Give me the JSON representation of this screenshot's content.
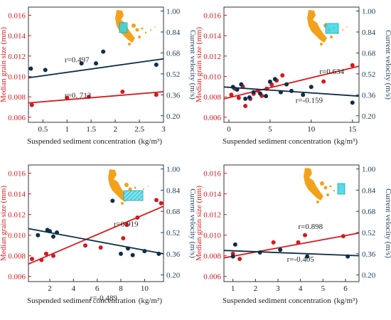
{
  "colors": {
    "red_series": "#d6191c",
    "navy_series": "#0d2f4a",
    "left_axis": "#d6191c",
    "right_axis": "#1a3e5c",
    "map_land": "#f2a21a",
    "map_box": "#35d6e6"
  },
  "chart_data": [
    {
      "type": "scatter",
      "xlabel": "Suspended sediment concentration",
      "xunit": "(kg/m³)",
      "ylabel_left": "Median grain size (mm)",
      "ylabel_right": "Current velocity (m/s)",
      "xlim": [
        0.2,
        3.0
      ],
      "ylim_left": [
        0.0055,
        0.0168
      ],
      "ylim_right": [
        0.15,
        1.03
      ],
      "xticks": [
        0.5,
        1,
        1.5,
        2,
        2.5,
        3
      ],
      "xtick_labels": [
        "0.5",
        "1",
        "1.5",
        "2",
        "2.5",
        "3"
      ],
      "yticks_left": [
        "0.006",
        "0.008",
        "0.010",
        "0.012",
        "0.014",
        "0.016"
      ],
      "yticks_right": [
        "0.20",
        "0.36",
        "0.52",
        "0.68",
        "0.84",
        "1.00"
      ],
      "grid": false,
      "inset_map_icon": "map-inset-icon",
      "series": [
        {
          "axis": "left",
          "color": "#d6191c",
          "correlation": "r=0. 712",
          "x": [
            0.27,
            1.0,
            1.45,
            2.15,
            2.85
          ],
          "y": [
            0.0072,
            0.0079,
            0.008,
            0.0085,
            0.0082
          ],
          "trend": [
            [
              0.2,
              0.0074
            ],
            [
              3.0,
              0.0085
            ]
          ]
        },
        {
          "axis": "right",
          "color": "#0d2f4a",
          "correlation": "r=0.497",
          "x": [
            0.25,
            0.55,
            1.3,
            1.6,
            1.75,
            2.85
          ],
          "y": [
            0.56,
            0.55,
            0.6,
            0.6,
            0.69,
            0.59
          ],
          "trend": [
            [
              0.2,
              0.49
            ],
            [
              3.0,
              0.635
            ]
          ]
        }
      ],
      "label_positions": [
        {
          "series": 1,
          "x": 0.95,
          "y": 0.61
        },
        {
          "series": 0,
          "x": 0.95,
          "y": 0.00792
        }
      ]
    },
    {
      "type": "scatter",
      "xlabel": "Suspended sediment concentration",
      "xunit": "(kg/m³)",
      "ylabel_left": "Median grain size (mm)",
      "ylabel_right": "Current velocity (m/s)",
      "xlim": [
        -0.6,
        15.8
      ],
      "ylim_left": [
        0.0055,
        0.0168
      ],
      "ylim_right": [
        0.15,
        1.03
      ],
      "xticks": [
        0,
        5,
        10,
        15
      ],
      "xtick_labels": [
        "0",
        "5",
        "10",
        "15"
      ],
      "yticks_left": [
        "0.006",
        "0.008",
        "0.010",
        "0.012",
        "0.014",
        "0.016"
      ],
      "yticks_right": [
        "0.20",
        "0.36",
        "0.52",
        "0.68",
        "0.84",
        "1.00"
      ],
      "grid": false,
      "inset_map_icon": "map-inset-icon",
      "series": [
        {
          "axis": "left",
          "color": "#d6191c",
          "correlation": "r=0.634",
          "x": [
            0.3,
            0.7,
            1.2,
            1.7,
            2.0,
            2.6,
            3.0,
            3.5,
            4.0,
            4.6,
            5.2,
            5.8,
            6.5,
            11.5,
            15.0
          ],
          "y": [
            0.0082,
            0.0088,
            0.0079,
            0.009,
            0.0071,
            0.0078,
            0.0083,
            0.0086,
            0.0081,
            0.0088,
            0.0092,
            0.0096,
            0.0101,
            0.0095,
            0.0111
          ],
          "trend": [
            [
              -0.6,
              0.0078
            ],
            [
              15.8,
              0.011
            ]
          ]
        },
        {
          "axis": "right",
          "color": "#0d2f4a",
          "correlation": "r=-0.159",
          "x": [
            0.5,
            1.0,
            1.5,
            2.0,
            2.5,
            3.0,
            3.8,
            4.5,
            5.0,
            5.6,
            6.3,
            7.0,
            7.6,
            9.0,
            10.0,
            15.0
          ],
          "y": [
            0.42,
            0.4,
            0.44,
            0.33,
            0.34,
            0.38,
            0.37,
            0.35,
            0.46,
            0.48,
            0.38,
            0.44,
            0.39,
            0.36,
            0.42,
            0.3
          ],
          "trend": [
            [
              -0.6,
              0.42
            ],
            [
              15.8,
              0.35
            ]
          ]
        }
      ],
      "label_positions": [
        {
          "series": 0,
          "x": 11.0,
          "y": 0.01025
        },
        {
          "series": 1,
          "x": 8.1,
          "y": 0.3
        }
      ]
    },
    {
      "type": "scatter",
      "xlabel": "Suspended sediment concentration",
      "xunit": "(kg/m³)",
      "ylabel_left": "Median grain size (mm)",
      "ylabel_right": "Current velocity (m/s)",
      "xlim": [
        0.2,
        11.6
      ],
      "ylim_left": [
        0.0055,
        0.0168
      ],
      "ylim_right": [
        0.15,
        1.03
      ],
      "xticks": [
        2,
        4,
        6,
        8,
        10
      ],
      "xtick_labels": [
        "2",
        "4",
        "6",
        "8",
        "10"
      ],
      "yticks_left": [
        "0.006",
        "0.008",
        "0.010",
        "0.012",
        "0.014",
        "0.016"
      ],
      "yticks_right": [
        "0.20",
        "0.36",
        "0.52",
        "0.68",
        "0.84",
        "1.00"
      ],
      "grid": false,
      "inset_map_icon": "map-inset-icon",
      "series": [
        {
          "axis": "left",
          "color": "#d6191c",
          "correlation": "r=0.919",
          "x": [
            0.5,
            1.3,
            1.7,
            2.3,
            5.0,
            6.3,
            8.2,
            8.5,
            9.4,
            11.0,
            11.4
          ],
          "y": [
            0.0077,
            0.0076,
            0.0082,
            0.008,
            0.009,
            0.0088,
            0.0097,
            0.011,
            0.0117,
            0.0134,
            0.0131
          ],
          "trend": [
            [
              0.2,
              0.0072
            ],
            [
              11.6,
              0.0128
            ]
          ]
        },
        {
          "axis": "right",
          "color": "#0d2f4a",
          "correlation": "r=-0.489",
          "x": [
            1.0,
            1.8,
            2.0,
            2.3,
            2.6,
            7.3,
            8.0,
            8.6,
            9.0,
            10.0,
            11.2
          ],
          "y": [
            0.5,
            0.54,
            0.53,
            0.49,
            0.52,
            0.76,
            0.36,
            0.4,
            0.35,
            0.38,
            0.36
          ],
          "trend": [
            [
              0.2,
              0.55
            ],
            [
              11.6,
              0.36
            ]
          ]
        }
      ],
      "label_positions": [
        {
          "series": 0,
          "x": 7.4,
          "y": 0.01085
        },
        {
          "series": 1,
          "x": 5.4,
          "y": 0.0084
        }
      ]
    },
    {
      "type": "scatter",
      "xlabel": "Suspended sediment concentration",
      "xunit": "(kg/m³)",
      "ylabel_left": "Median grain size (mm)",
      "ylabel_right": "Current velocity (m/s)",
      "xlim": [
        0.6,
        6.6
      ],
      "ylim_left": [
        0.0055,
        0.0168
      ],
      "ylim_right": [
        0.15,
        1.03
      ],
      "xticks": [
        1,
        2,
        3,
        4,
        5,
        6
      ],
      "xtick_labels": [
        "1",
        "2",
        "3",
        "4",
        "5",
        "6"
      ],
      "yticks_left": [
        "0.006",
        "0.008",
        "0.010",
        "0.012",
        "0.014",
        "0.016"
      ],
      "yticks_right": [
        "0.20",
        "0.36",
        "0.52",
        "0.68",
        "0.84",
        "1.00"
      ],
      "grid": false,
      "inset_map_icon": "map-inset-icon",
      "series": [
        {
          "axis": "left",
          "color": "#d6191c",
          "correlation": "r=0.898",
          "x": [
            1.0,
            1.3,
            2.8,
            3.9,
            4.2,
            5.9
          ],
          "y": [
            0.0082,
            0.0077,
            0.0093,
            0.0093,
            0.01,
            0.0099
          ],
          "trend": [
            [
              0.6,
              0.0078
            ],
            [
              6.6,
              0.0102
            ]
          ]
        },
        {
          "axis": "right",
          "color": "#0d2f4a",
          "correlation": "r=-0.405",
          "x": [
            1.0,
            1.1,
            2.2,
            3.1,
            4.3,
            6.1
          ],
          "y": [
            0.34,
            0.43,
            0.37,
            0.39,
            0.34,
            0.34
          ],
          "trend": [
            [
              0.6,
              0.385
            ],
            [
              6.6,
              0.345
            ]
          ]
        }
      ],
      "label_positions": [
        {
          "series": 0,
          "x": 3.9,
          "y": 0.0106
        },
        {
          "series": 1,
          "x": 3.4,
          "y": 0.3
        }
      ]
    }
  ]
}
